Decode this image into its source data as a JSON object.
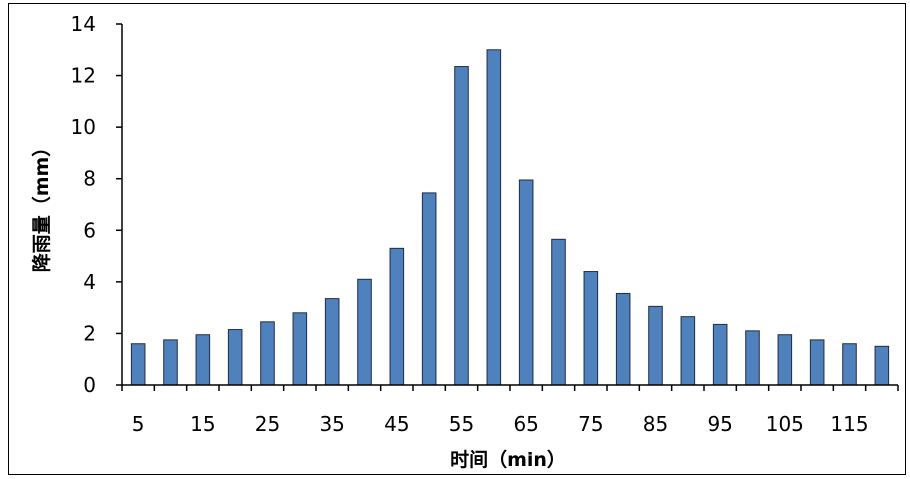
{
  "chart_data": {
    "type": "bar",
    "title": "",
    "xlabel": "时间（min）",
    "ylabel": "降雨量（mm）",
    "ylim": [
      0,
      14
    ],
    "yticks": [
      0,
      2,
      4,
      6,
      8,
      10,
      12,
      14
    ],
    "grid": false,
    "legend": "none",
    "bar_color": "#4F81BD",
    "bar_edge_color": "#1F2D44",
    "categories": [
      5,
      10,
      15,
      20,
      25,
      30,
      35,
      40,
      45,
      50,
      55,
      60,
      65,
      70,
      75,
      80,
      85,
      90,
      95,
      100,
      105,
      110,
      115,
      120
    ],
    "x_tick_labels": [
      "5",
      "15",
      "25",
      "35",
      "45",
      "55",
      "65",
      "75",
      "85",
      "95",
      "105",
      "115"
    ],
    "values": [
      1.6,
      1.75,
      1.95,
      2.15,
      2.45,
      2.8,
      3.35,
      4.1,
      5.3,
      7.45,
      12.35,
      13.0,
      7.95,
      5.65,
      4.4,
      3.55,
      3.05,
      2.65,
      2.35,
      2.1,
      1.95,
      1.75,
      1.6,
      1.5
    ]
  }
}
